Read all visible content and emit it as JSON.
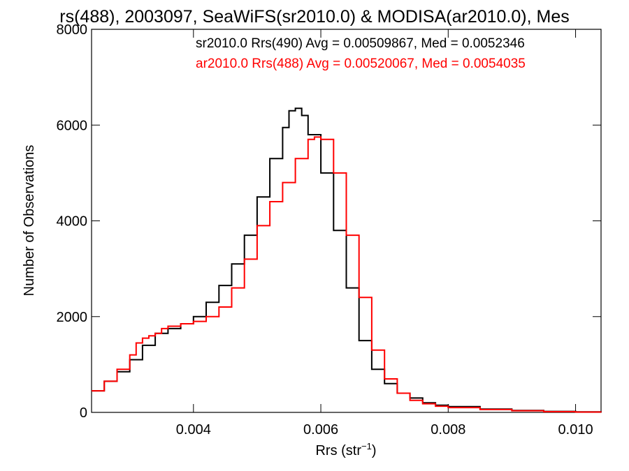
{
  "chart_data": {
    "type": "line",
    "title": "rs(488), 2003097, SeaWiFS(sr2010.0) & MODISA(ar2010.0), Mes",
    "xlabel": "Rrs (str",
    "xlabel_sup": "−1",
    "xlabel_end": ")",
    "ylabel": "Number of Observations",
    "xlim": [
      0.0024,
      0.0104
    ],
    "ylim": [
      0,
      8000
    ],
    "x_ticks": [
      {
        "value": 0.004,
        "label": "0.004"
      },
      {
        "value": 0.006,
        "label": "0.006"
      },
      {
        "value": 0.008,
        "label": "0.008"
      },
      {
        "value": 0.01,
        "label": "0.010"
      }
    ],
    "y_ticks": [
      {
        "value": 0,
        "label": "0"
      },
      {
        "value": 2000,
        "label": "2000"
      },
      {
        "value": 4000,
        "label": "4000"
      },
      {
        "value": 6000,
        "label": "6000"
      },
      {
        "value": 8000,
        "label": "8000"
      }
    ],
    "grid": false,
    "legend_position": "top-right",
    "series": [
      {
        "name": "sr2010.0 Rrs(490) Avg = 0.00509867, Med = 0.0052346",
        "color": "#000000",
        "x": [
          0.0024,
          0.0026,
          0.0028,
          0.003,
          0.0032,
          0.0034,
          0.0036,
          0.0038,
          0.004,
          0.0042,
          0.0044,
          0.0046,
          0.0048,
          0.005,
          0.0052,
          0.0054,
          0.0055,
          0.0056,
          0.0057,
          0.0058,
          0.006,
          0.0062,
          0.0064,
          0.0066,
          0.0068,
          0.007,
          0.0072,
          0.0074,
          0.0076,
          0.0078,
          0.008,
          0.0085,
          0.009,
          0.0095,
          0.01,
          0.0104
        ],
        "y": [
          450,
          650,
          850,
          1100,
          1400,
          1650,
          1750,
          1850,
          2000,
          2300,
          2650,
          3100,
          3700,
          4500,
          5300,
          5950,
          6300,
          6350,
          6200,
          5800,
          5000,
          3800,
          2600,
          1500,
          900,
          600,
          400,
          300,
          200,
          150,
          120,
          70,
          40,
          20,
          10,
          5
        ]
      },
      {
        "name": "ar2010.0 Rrs(488) Avg = 0.00520067, Med = 0.0054035",
        "color": "#ff0000",
        "x": [
          0.0024,
          0.0026,
          0.0028,
          0.003,
          0.0031,
          0.0032,
          0.0033,
          0.0034,
          0.0035,
          0.0036,
          0.0038,
          0.004,
          0.0042,
          0.0044,
          0.0046,
          0.0048,
          0.005,
          0.0052,
          0.0054,
          0.0056,
          0.0058,
          0.0059,
          0.006,
          0.0062,
          0.0064,
          0.0066,
          0.0068,
          0.007,
          0.0072,
          0.0074,
          0.0076,
          0.0078,
          0.008,
          0.0085,
          0.009,
          0.0095,
          0.01,
          0.0104
        ],
        "y": [
          450,
          650,
          900,
          1200,
          1450,
          1550,
          1600,
          1650,
          1750,
          1800,
          1850,
          1900,
          2000,
          2200,
          2600,
          3200,
          3900,
          4400,
          4800,
          5300,
          5700,
          5750,
          5700,
          5000,
          3700,
          2400,
          1300,
          700,
          400,
          250,
          180,
          130,
          100,
          60,
          35,
          15,
          8,
          5
        ]
      }
    ]
  }
}
